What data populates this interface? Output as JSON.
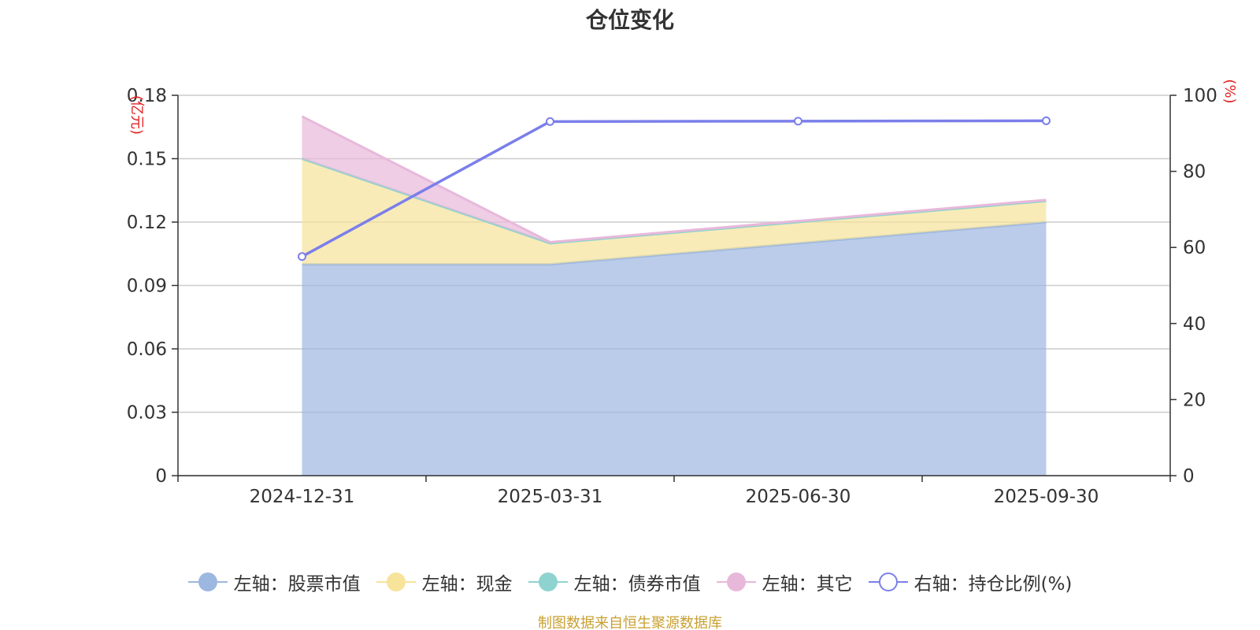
{
  "chart_data": {
    "type": "area",
    "title": "仓位变化",
    "categories": [
      "2024-12-31",
      "2025-03-31",
      "2025-06-30",
      "2025-09-30"
    ],
    "stacked": true,
    "left_axis": {
      "unit": "(亿元)",
      "ylim": [
        0,
        0.18
      ],
      "ticks": [
        "0",
        "0.03",
        "0.06",
        "0.09",
        "0.12",
        "0.15",
        "0.18"
      ]
    },
    "right_axis": {
      "unit": "(%)",
      "ylim": [
        0,
        100
      ],
      "ticks": [
        "0",
        "20",
        "40",
        "60",
        "80",
        "100"
      ]
    },
    "series": [
      {
        "name": "左轴：股票市值",
        "axis": "left",
        "kind": "area",
        "color": "#9cb7e0",
        "values": [
          0.1,
          0.1,
          0.11,
          0.12
        ]
      },
      {
        "name": "左轴：现金",
        "axis": "left",
        "kind": "area",
        "color": "#f7e39a",
        "values": [
          0.05,
          0.01,
          0.01,
          0.01
        ]
      },
      {
        "name": "左轴：债券市值",
        "axis": "left",
        "kind": "area",
        "color": "#8fd3d0",
        "values": [
          0,
          0,
          0,
          0
        ]
      },
      {
        "name": "左轴：其它",
        "axis": "left",
        "kind": "area",
        "color": "#e8b8da",
        "values": [
          0.02,
          0.0005,
          0.0005,
          0.0005
        ]
      },
      {
        "name": "右轴：持仓比例(%)",
        "axis": "right",
        "kind": "line",
        "color": "#7b7fea",
        "values": [
          57.6,
          93.1,
          93.2,
          93.3
        ]
      }
    ],
    "grid": true,
    "legend_position": "bottom"
  },
  "footer": {
    "source_text": "制图数据来自恒生聚源数据库"
  }
}
